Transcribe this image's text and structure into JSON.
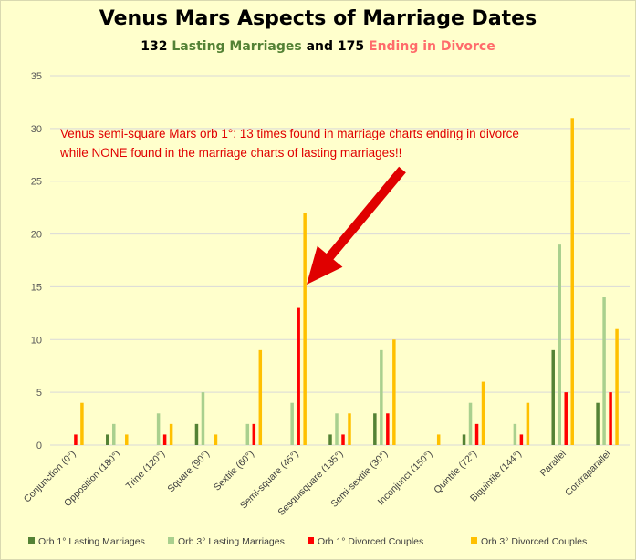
{
  "colors": {
    "background": "#ffffcc",
    "lasting_label": "#548235",
    "divorce_label": "#ff6b6b",
    "arrow": "#e00000"
  },
  "subtitle": {
    "part1": "132 ",
    "part2": "Lasting Marriages",
    "part3": " and 175 ",
    "part4": "Ending in Divorce"
  },
  "chart_data": {
    "type": "bar",
    "title": "Venus Mars Aspects of Marriage Dates",
    "ylim": [
      0,
      35
    ],
    "yticks": [
      0,
      5,
      10,
      15,
      20,
      25,
      30,
      35
    ],
    "grid": true,
    "legend_position": "bottom",
    "categories": [
      "Conjunction (0°)",
      "Opposition (180°)",
      "Trine (120°)",
      "Square (90°)",
      "Sextile (60°)",
      "Semi-square (45°)",
      "Sesquisquare (135°)",
      "Semi-sextile (30°)",
      "Inconjunct (150°)",
      "Quintile (72°)",
      "Biquintile (144°)",
      "Parallel",
      "Contraparallel"
    ],
    "series": [
      {
        "name": "Orb 1° Lasting Marriages",
        "color": "#548235",
        "values": [
          0,
          1,
          0,
          2,
          0,
          0,
          1,
          3,
          0,
          1,
          0,
          9,
          4
        ]
      },
      {
        "name": "Orb 3° Lasting Marriages",
        "color": "#a9d08e",
        "values": [
          0,
          2,
          3,
          5,
          2,
          4,
          3,
          9,
          0,
          4,
          2,
          19,
          14
        ]
      },
      {
        "name": "Orb 1° Divorced Couples",
        "color": "#ff0000",
        "values": [
          1,
          0,
          1,
          0,
          2,
          13,
          1,
          3,
          0,
          2,
          1,
          5,
          5
        ]
      },
      {
        "name": "Orb 3° Divorced Couples",
        "color": "#ffc000",
        "values": [
          4,
          1,
          2,
          1,
          9,
          22,
          3,
          10,
          1,
          6,
          4,
          31,
          11
        ]
      }
    ],
    "annotation": {
      "line1": "Venus semi-square Mars orb 1°: 13 times found in marriage charts ending in divorce",
      "line2": "while NONE found in the marriage charts of lasting marriages!!"
    }
  }
}
